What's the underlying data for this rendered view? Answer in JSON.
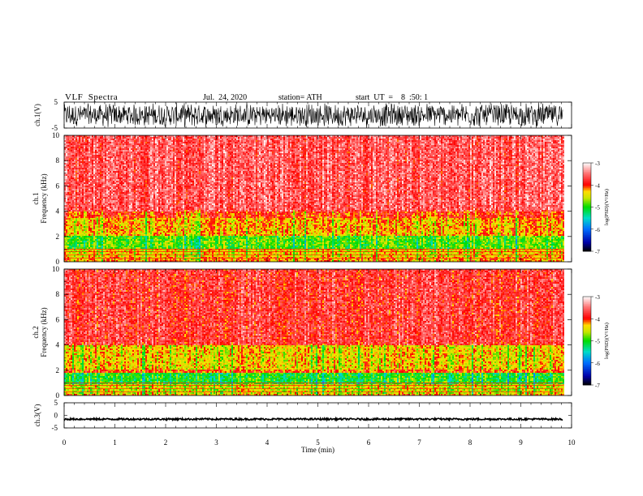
{
  "header": {
    "title": "VLF  Spectra",
    "date": "Jul.  24, 2020",
    "station": "station= ATH",
    "start": "start  UT  =    8  :50: 1"
  },
  "chart_data": [
    {
      "type": "line",
      "name": "ch1-waveform",
      "ylabel": "ch.1(V)",
      "ylim": [
        -5,
        5
      ],
      "yticks": [
        "5",
        "-5"
      ],
      "xlim": [
        0,
        10
      ],
      "extent_x": 9.83,
      "color": "#000000",
      "description_level": "dense oscillation mostly within about -4 to 4"
    },
    {
      "type": "heatmap",
      "name": "ch1-spectrogram",
      "ylabel_top": "ch.1",
      "ylabel": "Frequency  (kHz)",
      "ylim": [
        0,
        10
      ],
      "yticks": [
        "0",
        "2",
        "4",
        "6",
        "8",
        "10"
      ],
      "xlim": [
        0,
        10
      ],
      "extent_x": 9.83,
      "bands_khz": [
        {
          "from": 4.0,
          "to": 10.0,
          "level": -3.6
        },
        {
          "from": 3.5,
          "to": 4.0,
          "level": -3.95
        },
        {
          "from": 2.1,
          "to": 3.5,
          "level": -4.25
        },
        {
          "from": 1.1,
          "to": 2.1,
          "level": -4.85
        },
        {
          "from": 0.4,
          "to": 1.1,
          "level": -4.4
        },
        {
          "from": 0.0,
          "to": 0.4,
          "level": -4.2
        }
      ],
      "colorbar": {
        "label": "log(PSD)(V²/Hz)",
        "range": [
          -7,
          -3
        ],
        "ticks": [
          "-3",
          "-4",
          "-5",
          "-6",
          "-7"
        ]
      }
    },
    {
      "type": "heatmap",
      "name": "ch2-spectrogram",
      "ylabel_top": "ch.2",
      "ylabel": "Frequency  (kHz)",
      "ylim": [
        0,
        10
      ],
      "yticks": [
        "0",
        "2",
        "4",
        "6",
        "8",
        "10"
      ],
      "xlim": [
        0,
        10
      ],
      "extent_x": 9.83,
      "bands_khz": [
        {
          "from": 4.0,
          "to": 10.0,
          "level": -3.75
        },
        {
          "from": 2.1,
          "to": 4.0,
          "level": -4.35
        },
        {
          "from": 1.9,
          "to": 2.1,
          "level": -4.0
        },
        {
          "from": 0.9,
          "to": 1.9,
          "level": -5.0
        },
        {
          "from": 0.2,
          "to": 0.9,
          "level": -4.5
        },
        {
          "from": 0.0,
          "to": 0.2,
          "level": -4.2
        }
      ],
      "colorbar": {
        "label": "log(PSD)(V²/Hz)",
        "range": [
          -7,
          -3
        ],
        "ticks": [
          "-3",
          "-4",
          "-5",
          "-6",
          "-7"
        ]
      }
    },
    {
      "type": "line",
      "name": "ch3-waveform",
      "ylabel": "ch.3(V)",
      "ylim": [
        -5,
        5
      ],
      "yticks": [
        "5",
        "0",
        "-5"
      ],
      "xlim": [
        0,
        10
      ],
      "extent_x": 9.83,
      "baseline": -1.5,
      "color": "#000000",
      "xlabel": "Time  (min)",
      "xticks": [
        "0",
        "1",
        "2",
        "3",
        "4",
        "5",
        "6",
        "7",
        "8",
        "9",
        "10"
      ]
    }
  ]
}
